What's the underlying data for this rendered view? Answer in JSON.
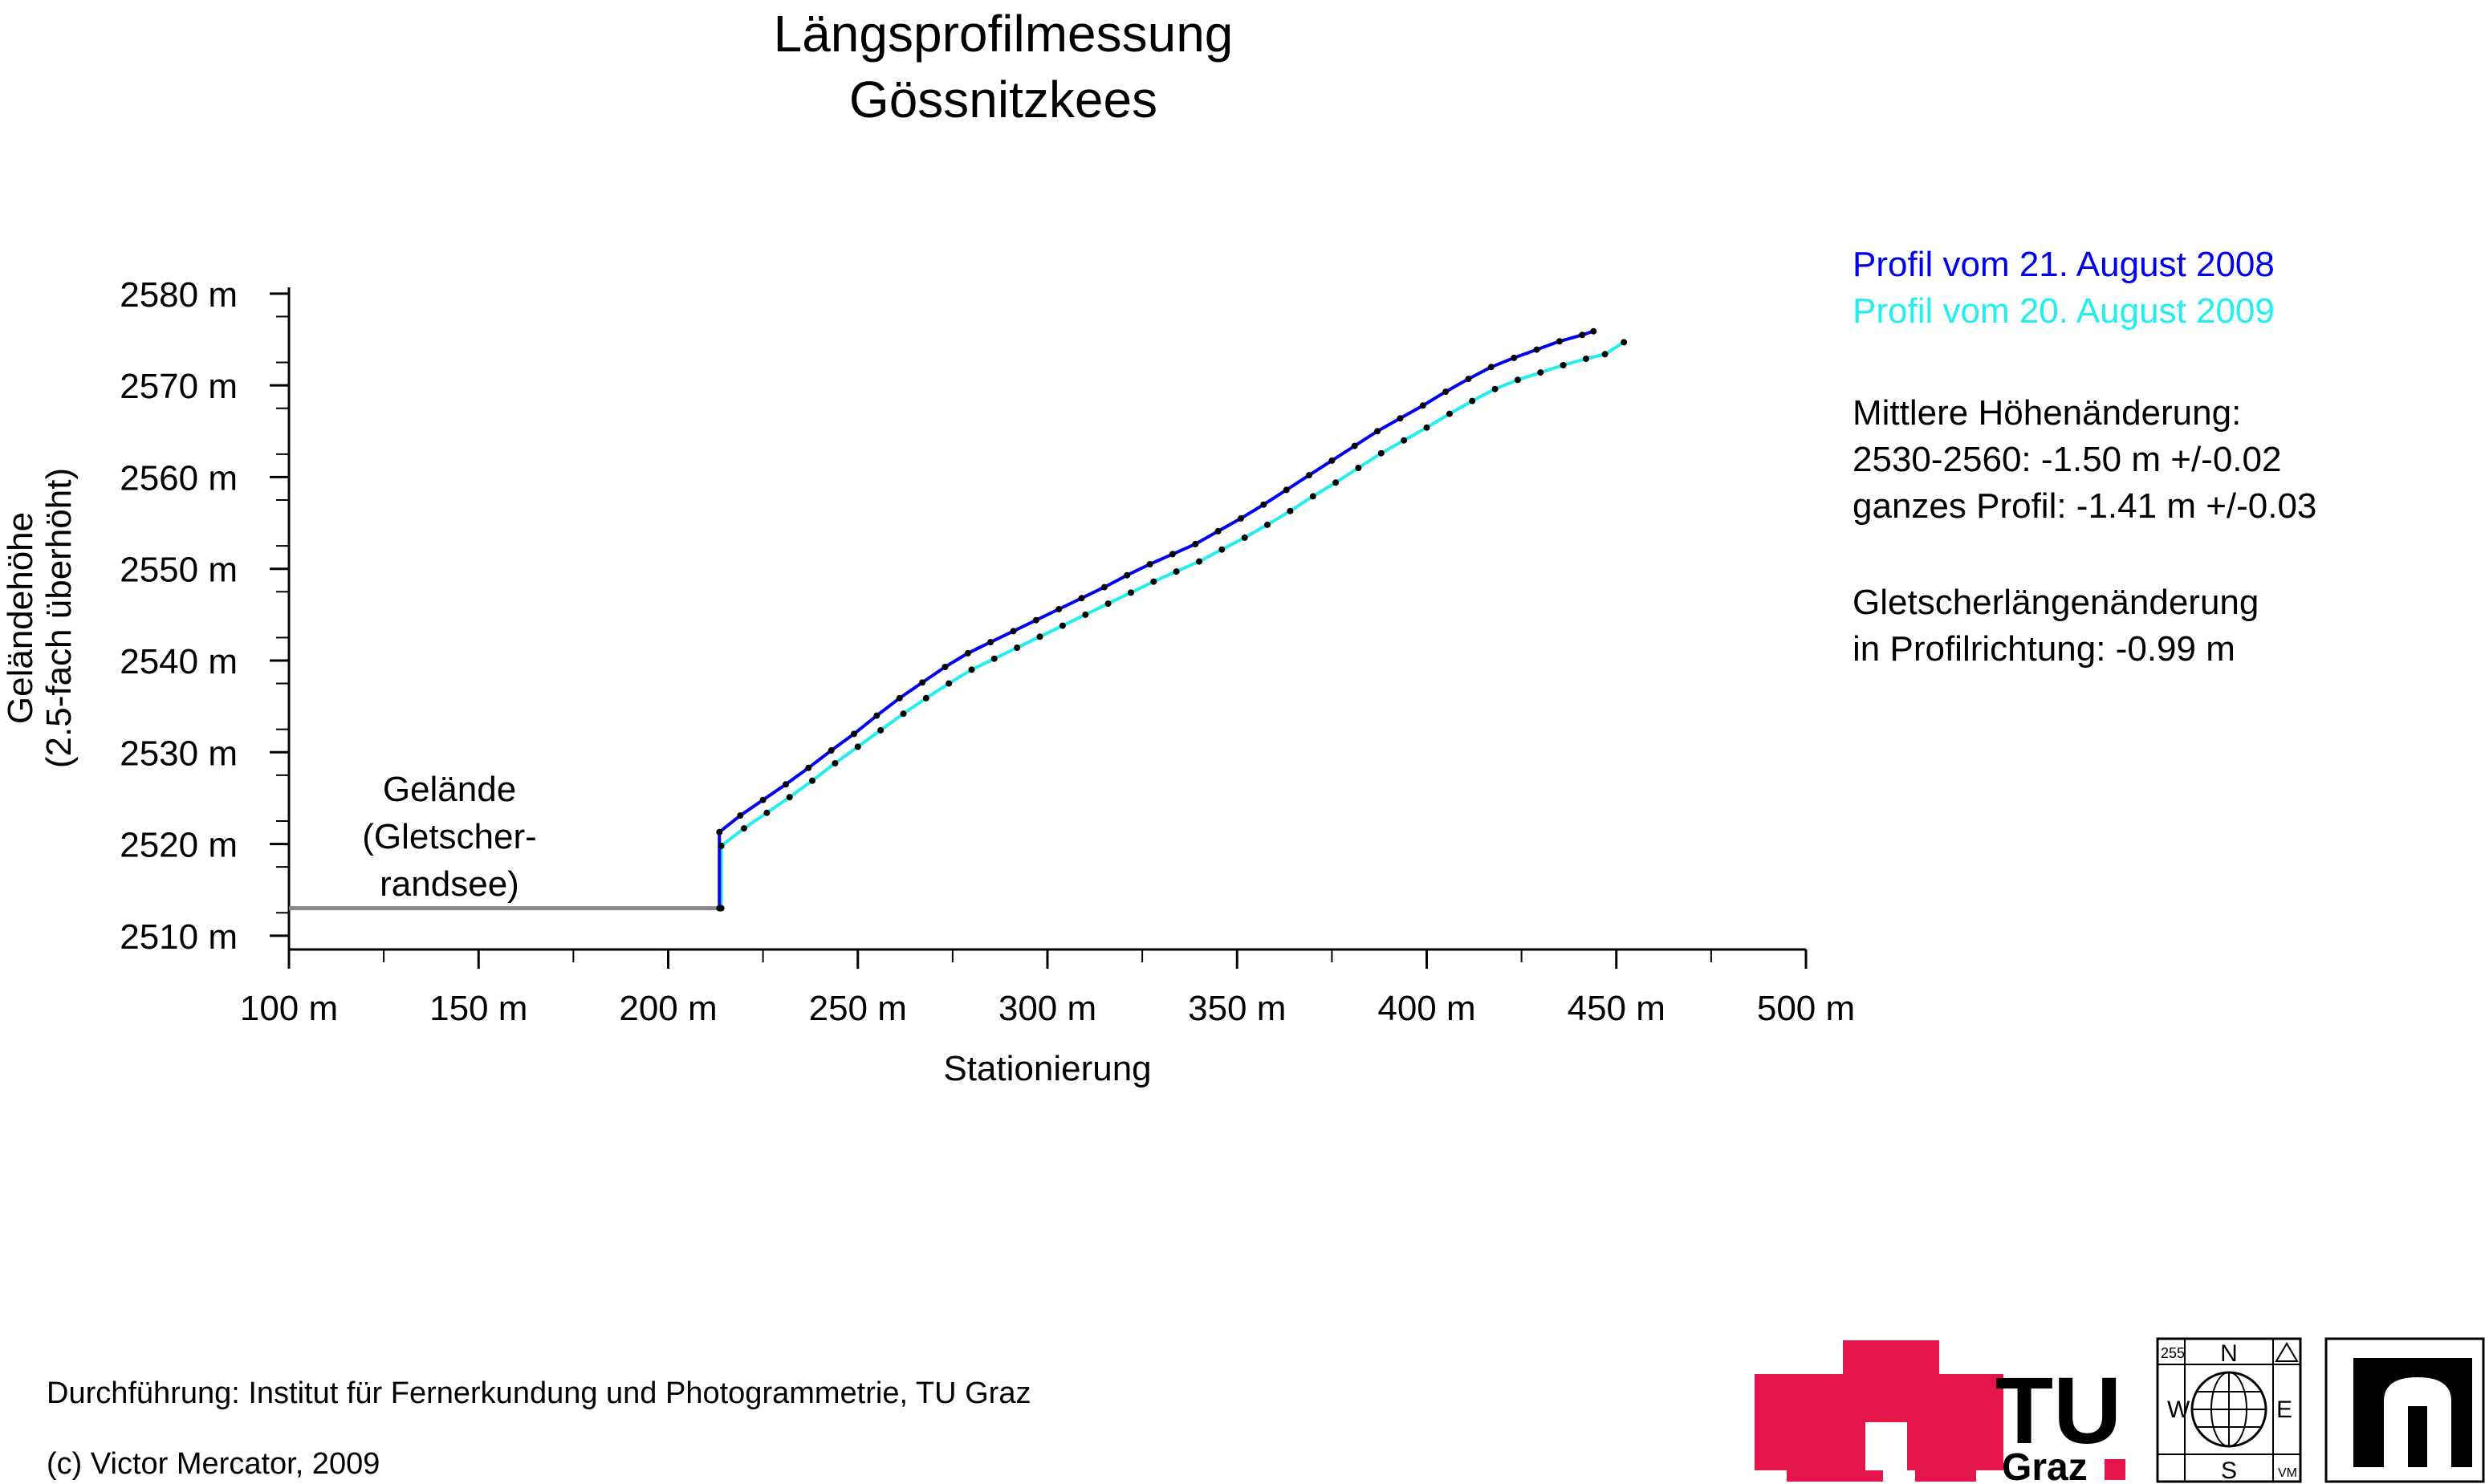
{
  "title": [
    "Längsprofilmessung",
    "Gössnitzkees"
  ],
  "chart_data": {
    "type": "line",
    "xlabel": "Stationierung",
    "ylabel": [
      "Geländehöhe",
      "(2.5-fach überhöht)"
    ],
    "xlim": [
      100,
      500
    ],
    "ylim": [
      2508,
      2585
    ],
    "x_ticks": [
      100,
      150,
      200,
      250,
      300,
      350,
      400,
      450,
      500
    ],
    "x_tick_labels": [
      "100 m",
      "150 m",
      "200 m",
      "250 m",
      "300 m",
      "350 m",
      "400 m",
      "450 m",
      "500 m"
    ],
    "y_ticks": [
      2510,
      2520,
      2530,
      2540,
      2550,
      2560,
      2570,
      2580
    ],
    "y_tick_labels": [
      "2510 m",
      "2520 m",
      "2530 m",
      "2540 m",
      "2550 m",
      "2560 m",
      "2570 m",
      "2580 m"
    ],
    "grid": false,
    "legend_position": "top-right",
    "series": [
      {
        "name": "Profil vom 21. August 2008",
        "color": "#0000ee",
        "x": [
          213.5,
          213.5,
          219,
          225,
          231,
          237,
          243,
          249,
          255,
          261,
          267,
          273,
          279,
          285,
          291,
          297,
          303,
          309,
          315,
          321,
          327,
          333,
          339,
          345,
          351,
          357,
          363,
          369,
          375,
          381,
          387,
          393,
          399,
          405,
          411,
          417,
          423,
          429,
          435,
          441,
          444
        ],
        "y": [
          2513.0,
          2521.3,
          2523.1,
          2524.8,
          2526.5,
          2528.3,
          2530.2,
          2532.0,
          2534.0,
          2535.9,
          2537.6,
          2539.3,
          2540.8,
          2542.0,
          2543.2,
          2544.4,
          2545.6,
          2546.8,
          2548.0,
          2549.3,
          2550.5,
          2551.6,
          2552.7,
          2554.1,
          2555.5,
          2557.0,
          2558.6,
          2560.2,
          2561.8,
          2563.4,
          2565.0,
          2566.4,
          2567.8,
          2569.3,
          2570.7,
          2572.0,
          2573.0,
          2573.9,
          2574.8,
          2575.5,
          2575.9
        ],
        "markers": true
      },
      {
        "name": "Profil vom 20. August 2009",
        "color": "#22eeee",
        "x": [
          214,
          214,
          220,
          226,
          232,
          238,
          244,
          250,
          256,
          262,
          268,
          274,
          280,
          286,
          292,
          298,
          304,
          310,
          316,
          322,
          328,
          334,
          340,
          346,
          352,
          358,
          364,
          370,
          376,
          382,
          388,
          394,
          400,
          406,
          412,
          418,
          424,
          430,
          436,
          442,
          447,
          452
        ],
        "y": [
          2513.0,
          2519.8,
          2521.7,
          2523.4,
          2525.1,
          2526.9,
          2528.8,
          2530.6,
          2532.4,
          2534.2,
          2535.9,
          2537.5,
          2539.0,
          2540.2,
          2541.4,
          2542.6,
          2543.8,
          2545.0,
          2546.2,
          2547.4,
          2548.6,
          2549.7,
          2550.8,
          2552.1,
          2553.4,
          2554.8,
          2556.3,
          2557.9,
          2559.4,
          2561.0,
          2562.6,
          2564.0,
          2565.4,
          2566.9,
          2568.3,
          2569.6,
          2570.6,
          2571.4,
          2572.2,
          2572.9,
          2573.4,
          2574.7
        ],
        "markers": true
      },
      {
        "name": "Gelände (Gletscher-randsee)",
        "color": "#888888",
        "x": [
          100,
          213.5
        ],
        "y": [
          2513.0,
          2513.0
        ],
        "markers": false
      }
    ],
    "annotations": [
      "Gelände",
      "(Gletscher-",
      "randsee)"
    ]
  },
  "legend": {
    "items": [
      {
        "label": "Profil vom 21. August 2008",
        "color": "#0000ee"
      },
      {
        "label": "Profil vom 20. August 2009",
        "color": "#22eeee"
      }
    ]
  },
  "info": {
    "mean_change_heading": "Mittlere Höhenänderung:",
    "mean_change_range": "2530-2560: -1.50 m  +/-0.02",
    "mean_change_full": "ganzes Profil: -1.41 m  +/-0.03",
    "length_change_heading": "Gletscherlängenänderung",
    "length_change_value": "in Profilrichtung: -0.99 m"
  },
  "footer": {
    "execution": "Durchführung: Institut für Fernerkundung und Photogrammetrie, TU Graz",
    "copyright": "(c) Victor Mercator, 2009"
  },
  "logos": {
    "tu_text": "TU",
    "graz_text": "Graz",
    "compass_north": "N",
    "compass_south": "S",
    "compass_west": "W",
    "compass_east": "E",
    "compass_number": "255",
    "compass_corner": "VM",
    "brand_color": "#e4154b"
  }
}
